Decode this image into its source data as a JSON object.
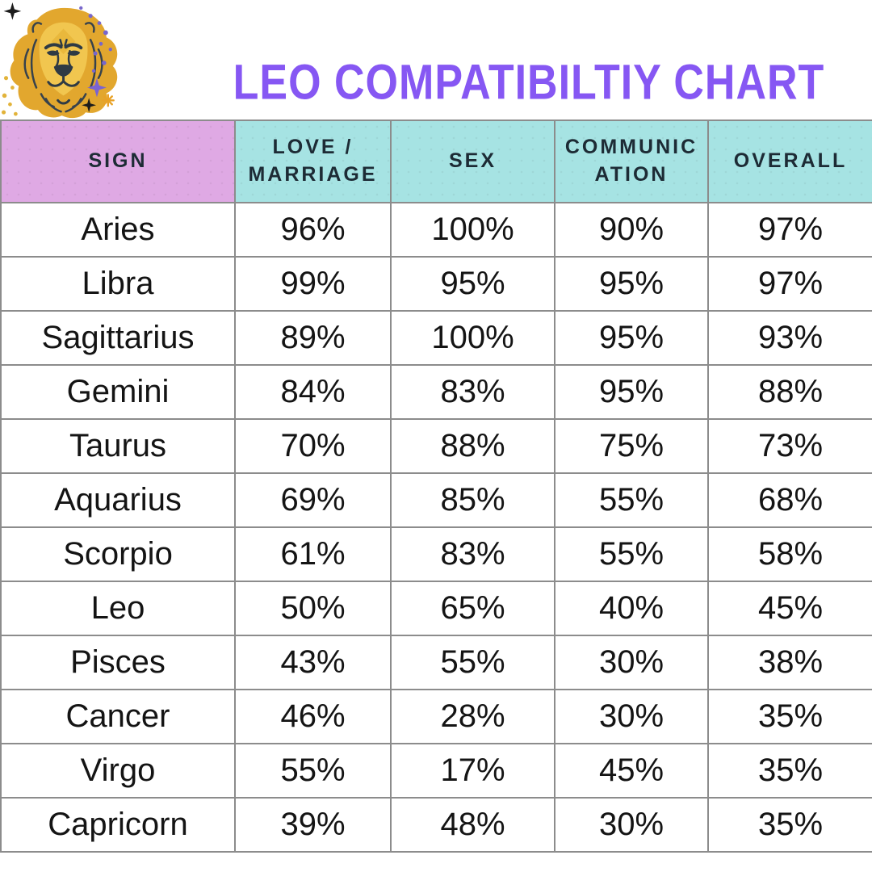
{
  "header": {
    "title": "LEO COMPATIBILTIY CHART",
    "title_color": "#8657F3",
    "logo_icon": "leo-lion-icon"
  },
  "table": {
    "columns": [
      "SIGN",
      "LOVE / MARRIAGE",
      "SEX",
      "COMMUNICATION",
      "OVERALL"
    ],
    "style": {
      "sign_header_bg": "#DFA9E4",
      "metric_header_bg": "#A6E3E3",
      "border_color": "#8c8c8c",
      "header_text_color": "#1d2b35",
      "body_text_color": "#141414"
    },
    "rows": [
      {
        "sign": "Aries",
        "love_marriage": "96%",
        "sex": "100%",
        "communication": "90%",
        "overall": "97%"
      },
      {
        "sign": "Libra",
        "love_marriage": "99%",
        "sex": "95%",
        "communication": "95%",
        "overall": "97%"
      },
      {
        "sign": "Sagittarius",
        "love_marriage": "89%",
        "sex": "100%",
        "communication": "95%",
        "overall": "93%"
      },
      {
        "sign": "Gemini",
        "love_marriage": "84%",
        "sex": "83%",
        "communication": "95%",
        "overall": "88%"
      },
      {
        "sign": "Taurus",
        "love_marriage": "70%",
        "sex": "88%",
        "communication": "75%",
        "overall": "73%"
      },
      {
        "sign": "Aquarius",
        "love_marriage": "69%",
        "sex": "85%",
        "communication": "55%",
        "overall": "68%"
      },
      {
        "sign": "Scorpio",
        "love_marriage": "61%",
        "sex": "83%",
        "communication": "55%",
        "overall": "58%"
      },
      {
        "sign": "Leo",
        "love_marriage": "50%",
        "sex": "65%",
        "communication": "40%",
        "overall": "45%"
      },
      {
        "sign": "Pisces",
        "love_marriage": "43%",
        "sex": "55%",
        "communication": "30%",
        "overall": "38%"
      },
      {
        "sign": "Cancer",
        "love_marriage": "46%",
        "sex": "28%",
        "communication": "30%",
        "overall": "35%"
      },
      {
        "sign": "Virgo",
        "love_marriage": "55%",
        "sex": "17%",
        "communication": "45%",
        "overall": "35%"
      },
      {
        "sign": "Capricorn",
        "love_marriage": "39%",
        "sex": "48%",
        "communication": "30%",
        "overall": "35%"
      }
    ]
  },
  "chart_data": {
    "type": "table",
    "title": "LEO COMPATIBILTIY CHART",
    "unit": "%",
    "columns": [
      "SIGN",
      "LOVE / MARRIAGE",
      "SEX",
      "COMMUNICATION",
      "OVERALL"
    ],
    "rows": [
      [
        "Aries",
        96,
        100,
        90,
        97
      ],
      [
        "Libra",
        99,
        95,
        95,
        97
      ],
      [
        "Sagittarius",
        89,
        100,
        95,
        93
      ],
      [
        "Gemini",
        84,
        83,
        95,
        88
      ],
      [
        "Taurus",
        70,
        88,
        75,
        73
      ],
      [
        "Aquarius",
        69,
        85,
        55,
        68
      ],
      [
        "Scorpio",
        61,
        83,
        55,
        58
      ],
      [
        "Leo",
        50,
        65,
        40,
        45
      ],
      [
        "Pisces",
        43,
        55,
        30,
        38
      ],
      [
        "Cancer",
        46,
        28,
        30,
        35
      ],
      [
        "Virgo",
        55,
        17,
        45,
        35
      ],
      [
        "Capricorn",
        39,
        48,
        30,
        35
      ]
    ]
  }
}
